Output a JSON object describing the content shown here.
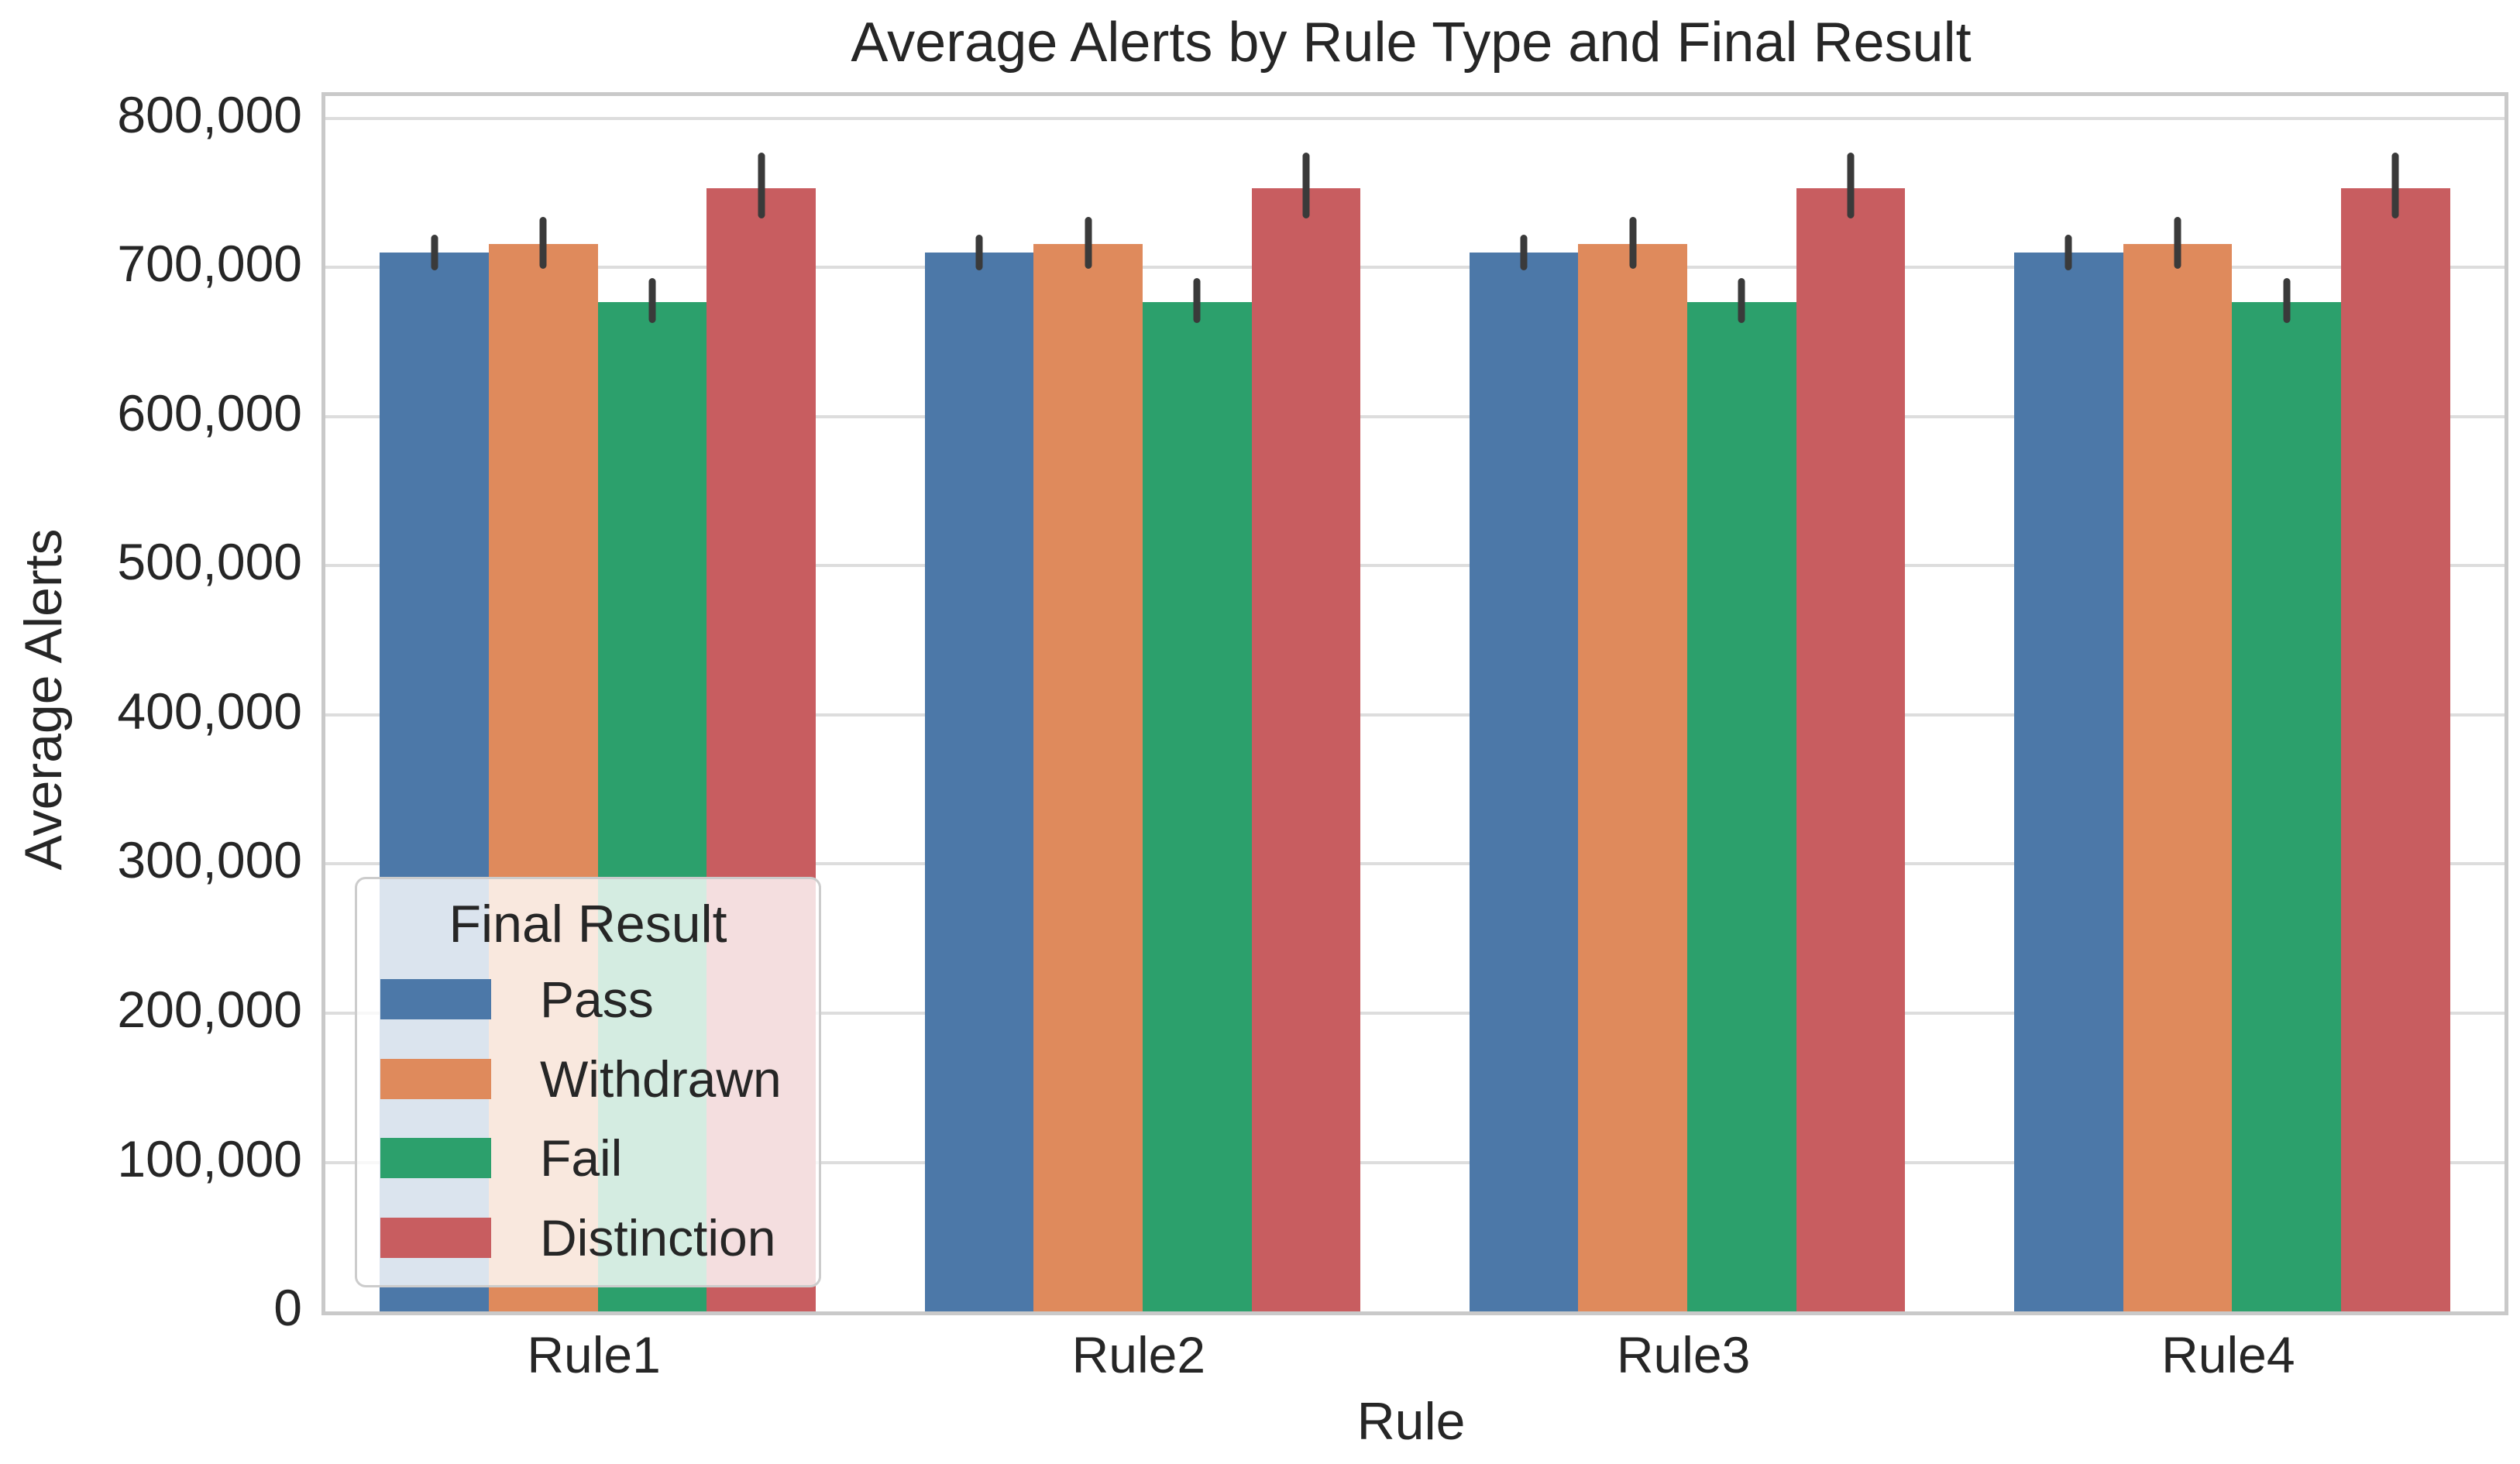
{
  "colors": {
    "background": "#FFFFFF",
    "text": "#262626",
    "grid": "#DDDDDD",
    "spine": "#C9C9C9",
    "error_bar": "#3A3A3A",
    "legend_background": "rgba(255,255,255,0.8)",
    "legend_border": "#CCCCCC"
  },
  "chart_data": {
    "type": "bar",
    "title": "Average Alerts by Rule Type and Final Result",
    "xlabel": "Rule",
    "ylabel": "Average Alerts",
    "categories": [
      "Rule1",
      "Rule2",
      "Rule3",
      "Rule4"
    ],
    "series": [
      {
        "name": "Pass",
        "color": "#4C78A8",
        "values": [
          710000,
          710000,
          710000,
          710000
        ],
        "ci_low": [
          698000,
          698000,
          698000,
          698000
        ],
        "ci_high": [
          722000,
          722000,
          722000,
          722000
        ]
      },
      {
        "name": "Withdrawn",
        "color": "#DF8A5C",
        "values": [
          716000,
          716000,
          716000,
          716000
        ],
        "ci_low": [
          699000,
          699000,
          699000,
          699000
        ],
        "ci_high": [
          734000,
          734000,
          734000,
          734000
        ]
      },
      {
        "name": "Fail",
        "color": "#2CA06C",
        "values": [
          677000,
          677000,
          677000,
          677000
        ],
        "ci_low": [
          663000,
          663000,
          663000,
          663000
        ],
        "ci_high": [
          693000,
          693000,
          693000,
          693000
        ]
      },
      {
        "name": "Distinction",
        "color": "#C85D60",
        "values": [
          753000,
          753000,
          753000,
          753000
        ],
        "ci_low": [
          733000,
          733000,
          733000,
          733000
        ],
        "ci_high": [
          777000,
          777000,
          777000,
          777000
        ]
      }
    ],
    "ylim": [
      0,
      815000
    ],
    "yticks": [
      {
        "value": 0,
        "label": "0"
      },
      {
        "value": 100000,
        "label": "100,000"
      },
      {
        "value": 200000,
        "label": "200,000"
      },
      {
        "value": 300000,
        "label": "300,000"
      },
      {
        "value": 400000,
        "label": "400,000"
      },
      {
        "value": 500000,
        "label": "500,000"
      },
      {
        "value": 600000,
        "label": "600,000"
      },
      {
        "value": 700000,
        "label": "700,000"
      },
      {
        "value": 800000,
        "label": "800,000"
      }
    ],
    "grid": "horizontal",
    "error_bars": true,
    "legend": {
      "title": "Final Result",
      "position": "lower left",
      "entries": [
        "Pass",
        "Withdrawn",
        "Fail",
        "Distinction"
      ]
    }
  }
}
